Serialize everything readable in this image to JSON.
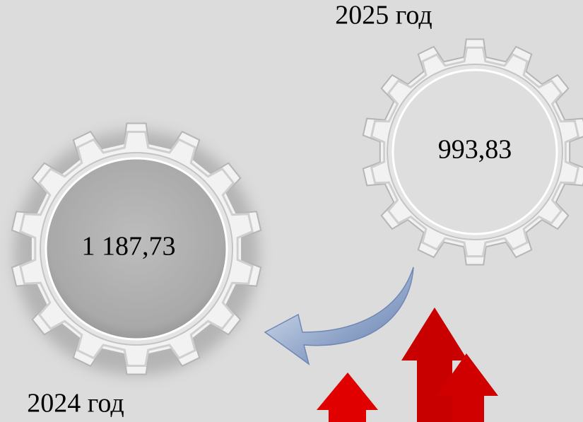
{
  "labels": {
    "year_2025": "2025 год",
    "value_2025": "993,83",
    "value_2024": "1 187,73",
    "year_2024": "2024 год"
  }
}
